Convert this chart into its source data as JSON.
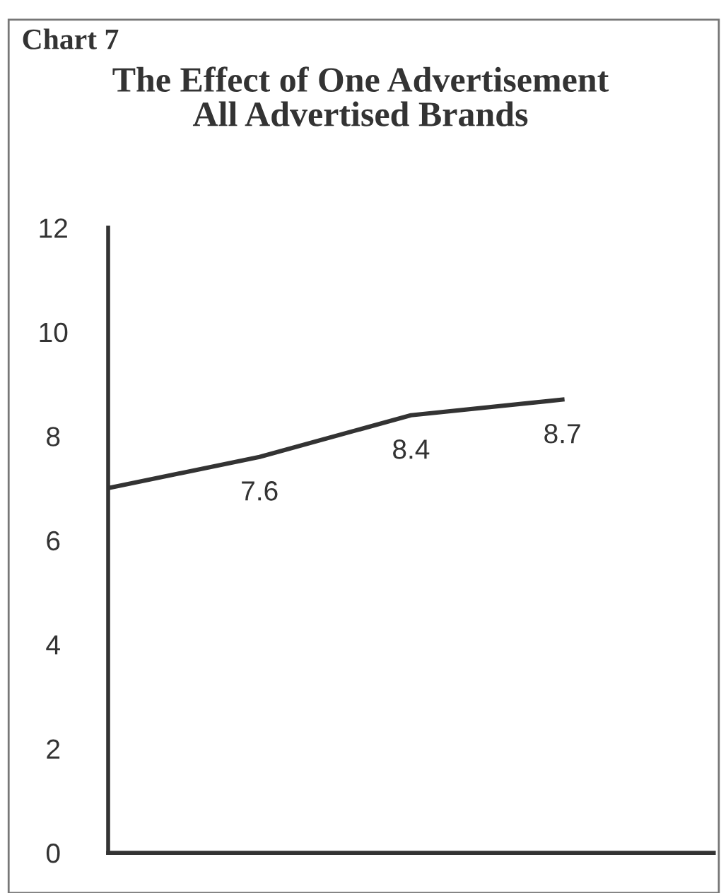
{
  "chart_data": {
    "type": "line",
    "title": "The Effect of One Advertisement\nAll Advertised Brands",
    "annotations": [
      "Chart 7"
    ],
    "categories": [
      null,
      null,
      null,
      null
    ],
    "series": [
      {
        "color": "#333333",
        "values": [
          7.0,
          7.6,
          8.4,
          8.7
        ],
        "value_labels": [
          null,
          "7.6",
          "8.4",
          "8.7"
        ]
      }
    ],
    "ylim": [
      0,
      12
    ],
    "yticks": [
      0,
      2,
      4,
      6,
      8,
      10,
      12
    ],
    "grid": false,
    "marker": "none",
    "line_style": "solid"
  }
}
